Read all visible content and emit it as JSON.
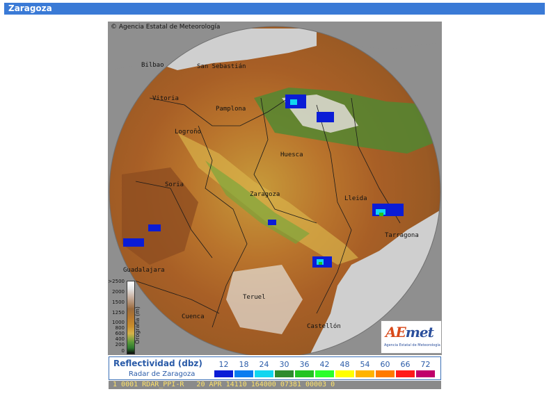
{
  "header": {
    "title": "Zaragoza"
  },
  "map": {
    "credit": "© Agencia Estatal de Meteorología",
    "cities": [
      {
        "name": "Bilbao"
      },
      {
        "name": "San Sebastián"
      },
      {
        "name": "Vitoria"
      },
      {
        "name": "Pamplona"
      },
      {
        "name": "Logroño"
      },
      {
        "name": "Huesca"
      },
      {
        "name": "Soria"
      },
      {
        "name": "Zaragoza"
      },
      {
        "name": "Lleida"
      },
      {
        "name": "Tarragona"
      },
      {
        "name": "Guadalajara"
      },
      {
        "name": "Teruel"
      },
      {
        "name": "Cuenca"
      },
      {
        "name": "Castellón"
      }
    ]
  },
  "orography": {
    "labels": [
      ">2500",
      "2000",
      "1500",
      "1250",
      "1000",
      "800",
      "600",
      "400",
      "200",
      "0"
    ],
    "axis_label": "Orografía (m)"
  },
  "logo": {
    "word_a": "AE",
    "word_b": "met",
    "subtitle": "Agencia Estatal de Meteorología"
  },
  "legend": {
    "title": "Reflectividad (dbz)",
    "subtitle": "Radar de Zaragoza",
    "scale": [
      {
        "value": "12",
        "color": "#0a1cd6"
      },
      {
        "value": "18",
        "color": "#0a7cf0"
      },
      {
        "value": "24",
        "color": "#11d6f0"
      },
      {
        "value": "30",
        "color": "#2e8b2e"
      },
      {
        "value": "36",
        "color": "#22c422"
      },
      {
        "value": "42",
        "color": "#2bff2b"
      },
      {
        "value": "48",
        "color": "#ffff00"
      },
      {
        "value": "54",
        "color": "#ffb300"
      },
      {
        "value": "60",
        "color": "#ff7a00"
      },
      {
        "value": "66",
        "color": "#ff1a1a"
      },
      {
        "value": "72",
        "color": "#c0006a"
      }
    ]
  },
  "status": {
    "text": " 1 0001 RDAR_PPI-R   20 APR 14110 164000 07381 00003 0"
  }
}
